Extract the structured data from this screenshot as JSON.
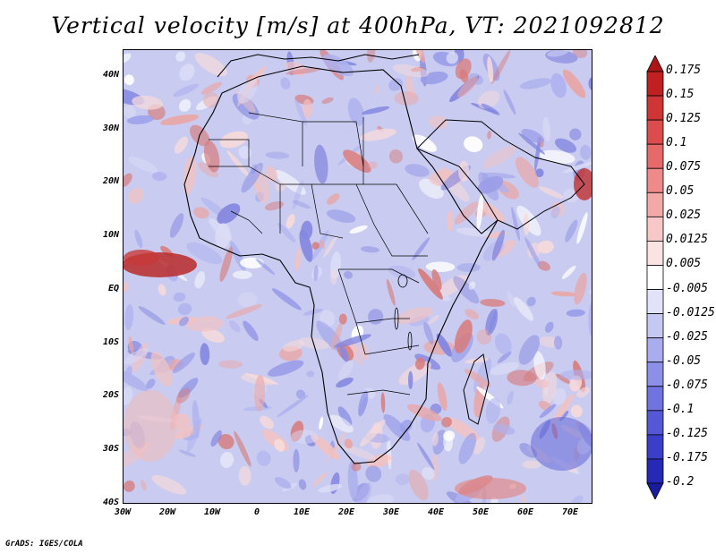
{
  "title": "Vertical velocity [m/s] at 400hPa, VT: 2021092812",
  "credit": "GrADS: IGES/COLA",
  "map": {
    "lat_range": [
      -40,
      45
    ],
    "lon_range": [
      -30,
      75
    ],
    "lat_labels": [
      "40N",
      "30N",
      "20N",
      "10N",
      "EQ",
      "10S",
      "20S",
      "30S",
      "40S"
    ],
    "lon_labels": [
      "30W",
      "20W",
      "10W",
      "0",
      "10E",
      "20E",
      "30E",
      "40E",
      "50E",
      "60E",
      "70E"
    ],
    "lat_values": [
      40,
      30,
      20,
      10,
      0,
      -10,
      -20,
      -30,
      -40
    ],
    "lon_values": [
      -30,
      -20,
      -10,
      0,
      10,
      20,
      30,
      40,
      50,
      60,
      70
    ],
    "background_color": "#c9ccf0"
  },
  "colorbar": {
    "labels": [
      "0.175",
      "0.15",
      "0.125",
      "0.1",
      "0.075",
      "0.05",
      "0.025",
      "0.0125",
      "0.005",
      "-0.005",
      "-0.0125",
      "-0.025",
      "-0.05",
      "-0.075",
      "-0.1",
      "-0.125",
      "-0.175",
      "-0.2"
    ],
    "colors": [
      "#ab1616",
      "#c02020",
      "#d03535",
      "#dc4c4c",
      "#e66a6a",
      "#ee8a8a",
      "#f4a9a9",
      "#f8c8c8",
      "#fbe3e3",
      "#ffffff",
      "#e2e3fa",
      "#c6c8f4",
      "#a9acef",
      "#8d90e8",
      "#7074e0",
      "#5558d6",
      "#3b3ec8",
      "#2629b6",
      "#1a1c9e"
    ]
  }
}
